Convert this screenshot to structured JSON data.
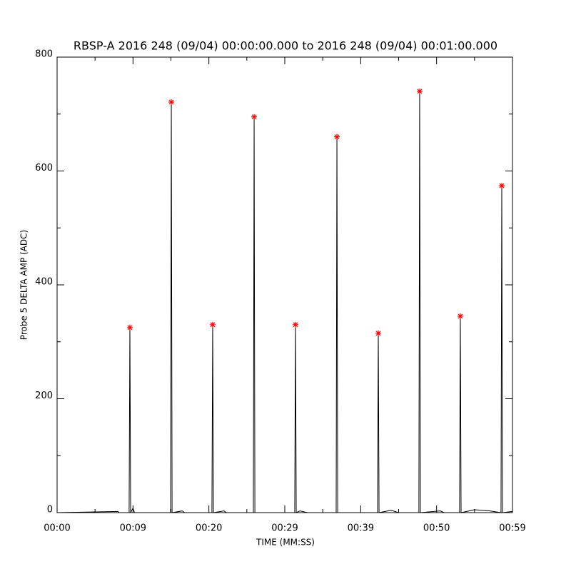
{
  "chart_data": {
    "type": "line",
    "title": "RBSP-A 2016 248 (09/04) 00:00:00.000 to 2016 248 (09/04) 00:01:00.000",
    "x_label": "TIME (MM:SS)",
    "y_label": "Probe 5 DELTA AMP (ADC)",
    "xlim": [
      0,
      60
    ],
    "ylim": [
      0,
      800
    ],
    "xticks": [
      {
        "value": 0,
        "label": "00:00"
      },
      {
        "value": 10,
        "label": "00:09"
      },
      {
        "value": 20,
        "label": "00:20"
      },
      {
        "value": 30,
        "label": "00:29"
      },
      {
        "value": 40,
        "label": "00:39"
      },
      {
        "value": 50,
        "label": "00:50"
      },
      {
        "value": 60,
        "label": "00:59"
      }
    ],
    "yticks": [
      0,
      200,
      400,
      600,
      800
    ],
    "series": [
      {
        "color": "#000000",
        "marker": "none",
        "x": [
          0,
          8.0,
          8.2,
          9.49,
          9.59,
          9.69,
          10.0,
          10.2,
          14.95,
          15.05,
          15.15,
          16.5,
          16.8,
          20.4,
          20.5,
          20.6,
          22.0,
          22.3,
          25.86,
          25.96,
          26.06,
          31.31,
          31.41,
          31.51,
          32.0,
          33.0,
          36.77,
          36.87,
          36.97,
          42.22,
          42.32,
          42.42,
          44.0,
          45.0,
          47.67,
          47.77,
          47.87,
          50.5,
          51.0,
          53.03,
          53.13,
          53.23,
          55.0,
          57.0,
          58.49,
          58.59,
          58.69,
          60
        ],
        "values": [
          0,
          2,
          0,
          0,
          325,
          0,
          8,
          0,
          0,
          721,
          0,
          3,
          0,
          0,
          330,
          0,
          3,
          0,
          0,
          695,
          0,
          0,
          330,
          0,
          3,
          0,
          0,
          660,
          0,
          0,
          315,
          0,
          4,
          0,
          0,
          740,
          0,
          3,
          0,
          0,
          345,
          0,
          5,
          3,
          0,
          574,
          0,
          2
        ]
      },
      {
        "color": "#ff0000",
        "marker": "asterisk",
        "x": [
          9.59,
          15.05,
          20.5,
          25.96,
          31.41,
          36.87,
          42.32,
          47.77,
          53.13,
          58.59
        ],
        "values": [
          325,
          721,
          330,
          695,
          330,
          660,
          315,
          740,
          345,
          574
        ]
      }
    ]
  }
}
